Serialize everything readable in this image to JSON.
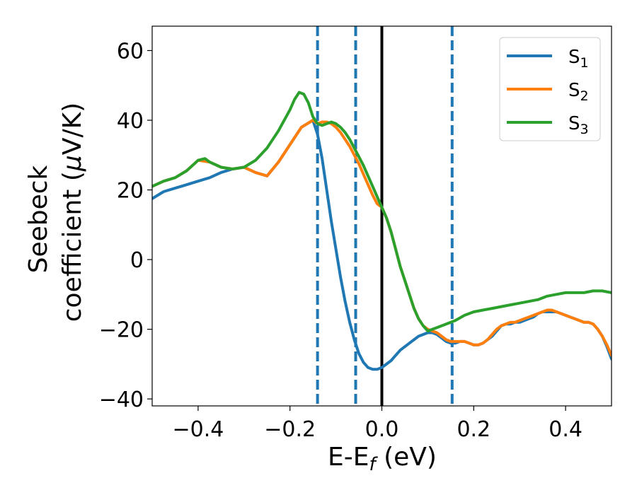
{
  "chart_data": {
    "type": "line",
    "title": "",
    "xlabel": {
      "main": "E-E",
      "sub": "f",
      "tail": " (eV)"
    },
    "ylabel": {
      "line1": "Seebeck",
      "line2_main": "coefficient  (",
      "mu": "μ",
      "line2_tail": "V/K)"
    },
    "xlim": [
      -0.5,
      0.5
    ],
    "ylim": [
      -42,
      67
    ],
    "xticks": [
      -0.4,
      -0.2,
      0.0,
      0.2,
      0.4
    ],
    "xtick_labels": [
      "−0.4",
      "−0.2",
      "0.0",
      "0.2",
      "0.4"
    ],
    "yticks": [
      -40,
      -20,
      0,
      20,
      40,
      60
    ],
    "ytick_labels": [
      "−40",
      "−20",
      "0",
      "20",
      "40",
      "60"
    ],
    "grid": false,
    "legend_position": "top-right",
    "series": [
      {
        "name": "S",
        "sub": "1",
        "color": "#1f77b4",
        "x": [
          -0.5,
          -0.475,
          -0.45,
          -0.425,
          -0.4,
          -0.375,
          -0.35,
          -0.325,
          -0.3,
          -0.275,
          -0.25,
          -0.225,
          -0.2,
          -0.175,
          -0.15,
          -0.14,
          -0.13,
          -0.12,
          -0.11,
          -0.1,
          -0.09,
          -0.08,
          -0.07,
          -0.06,
          -0.05,
          -0.04,
          -0.03,
          -0.02,
          -0.01,
          0.0,
          0.01,
          0.02,
          0.03,
          0.04,
          0.05,
          0.06,
          0.07,
          0.08,
          0.09,
          0.1,
          0.11,
          0.12,
          0.13,
          0.14,
          0.15,
          0.16,
          0.17,
          0.18,
          0.19,
          0.2,
          0.21,
          0.22,
          0.23,
          0.24,
          0.25,
          0.26,
          0.27,
          0.28,
          0.29,
          0.3,
          0.31,
          0.32,
          0.33,
          0.34,
          0.35,
          0.36,
          0.37,
          0.38,
          0.39,
          0.4,
          0.41,
          0.42,
          0.43,
          0.44,
          0.45,
          0.46,
          0.47,
          0.48,
          0.49,
          0.5
        ],
        "y": [
          17.5,
          19.5,
          20.5,
          21.5,
          22.5,
          23.5,
          25,
          26,
          26.5,
          25,
          24,
          28,
          33,
          38,
          40,
          36,
          29,
          20,
          11,
          3,
          -5,
          -12,
          -18,
          -23,
          -27,
          -29.5,
          -31,
          -31.5,
          -31.5,
          -31,
          -30,
          -29,
          -27.5,
          -26,
          -25,
          -24,
          -23,
          -22,
          -21.5,
          -21,
          -21,
          -21.5,
          -22.5,
          -23.5,
          -24,
          -24,
          -23.5,
          -23.5,
          -24,
          -24.5,
          -24.5,
          -24,
          -23,
          -22,
          -20.5,
          -19,
          -18.5,
          -18.5,
          -18,
          -18,
          -17.5,
          -17,
          -16.5,
          -15.5,
          -15,
          -15,
          -15,
          -15,
          -15.5,
          -16,
          -16.5,
          -17,
          -17.5,
          -18,
          -18,
          -18.5,
          -20,
          -22,
          -25,
          -28.5
        ]
      },
      {
        "name": "S",
        "sub": "2",
        "color": "#ff7f0e",
        "x": [
          -0.5,
          -0.475,
          -0.45,
          -0.425,
          -0.4,
          -0.375,
          -0.35,
          -0.325,
          -0.3,
          -0.275,
          -0.25,
          -0.225,
          -0.2,
          -0.175,
          -0.15,
          -0.14,
          -0.13,
          -0.12,
          -0.11,
          -0.1,
          -0.09,
          -0.08,
          -0.07,
          -0.06,
          -0.05,
          -0.04,
          -0.03,
          -0.02,
          -0.01,
          0.0,
          0.01,
          0.02,
          0.03,
          0.04,
          0.05,
          0.06,
          0.07,
          0.08,
          0.09,
          0.1,
          0.11,
          0.12,
          0.13,
          0.14,
          0.15,
          0.16,
          0.17,
          0.18,
          0.19,
          0.2,
          0.21,
          0.22,
          0.23,
          0.24,
          0.25,
          0.26,
          0.27,
          0.28,
          0.29,
          0.3,
          0.31,
          0.32,
          0.33,
          0.34,
          0.35,
          0.36,
          0.37,
          0.38,
          0.39,
          0.4,
          0.41,
          0.42,
          0.43,
          0.44,
          0.45,
          0.46,
          0.47,
          0.48,
          0.49,
          0.5
        ],
        "y": [
          21,
          22.5,
          23.5,
          25.5,
          28.5,
          28,
          26.5,
          26,
          26.5,
          25,
          24,
          28,
          33,
          38,
          40,
          39,
          39.5,
          39.5,
          39,
          38,
          36.5,
          34.5,
          32.5,
          30,
          27.5,
          24.5,
          21.5,
          18.5,
          16,
          15,
          12,
          8,
          3,
          -2,
          -6,
          -10,
          -14,
          -17,
          -19,
          -20,
          -20.5,
          -21,
          -22,
          -23,
          -23.5,
          -23.5,
          -23.5,
          -23.5,
          -24,
          -24.5,
          -24.5,
          -24,
          -23,
          -21.5,
          -20,
          -19,
          -18.5,
          -18,
          -18,
          -17.5,
          -17,
          -16.5,
          -16,
          -15.5,
          -15,
          -14.5,
          -14.5,
          -15,
          -15.5,
          -16,
          -16.5,
          -17,
          -17.5,
          -18,
          -18,
          -18.5,
          -20,
          -22,
          -24.5,
          -27.5
        ]
      },
      {
        "name": "S",
        "sub": "3",
        "color": "#2ca02c",
        "x": [
          -0.5,
          -0.475,
          -0.45,
          -0.425,
          -0.4,
          -0.385,
          -0.375,
          -0.35,
          -0.325,
          -0.3,
          -0.275,
          -0.25,
          -0.225,
          -0.2,
          -0.19,
          -0.18,
          -0.17,
          -0.16,
          -0.15,
          -0.14,
          -0.13,
          -0.12,
          -0.11,
          -0.1,
          -0.09,
          -0.08,
          -0.07,
          -0.06,
          -0.05,
          -0.04,
          -0.03,
          -0.02,
          -0.01,
          0.0,
          0.01,
          0.02,
          0.03,
          0.04,
          0.05,
          0.06,
          0.07,
          0.08,
          0.09,
          0.1,
          0.11,
          0.12,
          0.14,
          0.16,
          0.18,
          0.2,
          0.22,
          0.24,
          0.26,
          0.28,
          0.3,
          0.32,
          0.34,
          0.35,
          0.36,
          0.38,
          0.4,
          0.42,
          0.44,
          0.46,
          0.48,
          0.5
        ],
        "y": [
          21,
          22.5,
          23.5,
          25.5,
          28.5,
          29,
          28,
          26.5,
          26,
          26.5,
          28.5,
          32,
          37,
          43,
          46,
          48,
          47.5,
          45,
          41,
          39,
          38.5,
          39,
          39.5,
          39,
          38,
          36.5,
          34.5,
          32,
          29.5,
          27,
          24,
          21,
          18,
          15,
          12,
          8,
          3,
          -2,
          -6,
          -10,
          -14,
          -17,
          -19,
          -20.5,
          -20,
          -19.5,
          -18.5,
          -17.5,
          -16,
          -15,
          -14.5,
          -14,
          -13.5,
          -13,
          -12.5,
          -12,
          -11.5,
          -11,
          -10.5,
          -10,
          -9.5,
          -9.5,
          -9.5,
          -9,
          -9,
          -9.5
        ]
      }
    ],
    "reference_lines": {
      "dashed_vertical_x": [
        -0.14,
        -0.057,
        0.153
      ],
      "dashed_color": "#1f77b4",
      "solid_vertical_x": [
        0.0
      ],
      "solid_color": "#000000"
    }
  }
}
